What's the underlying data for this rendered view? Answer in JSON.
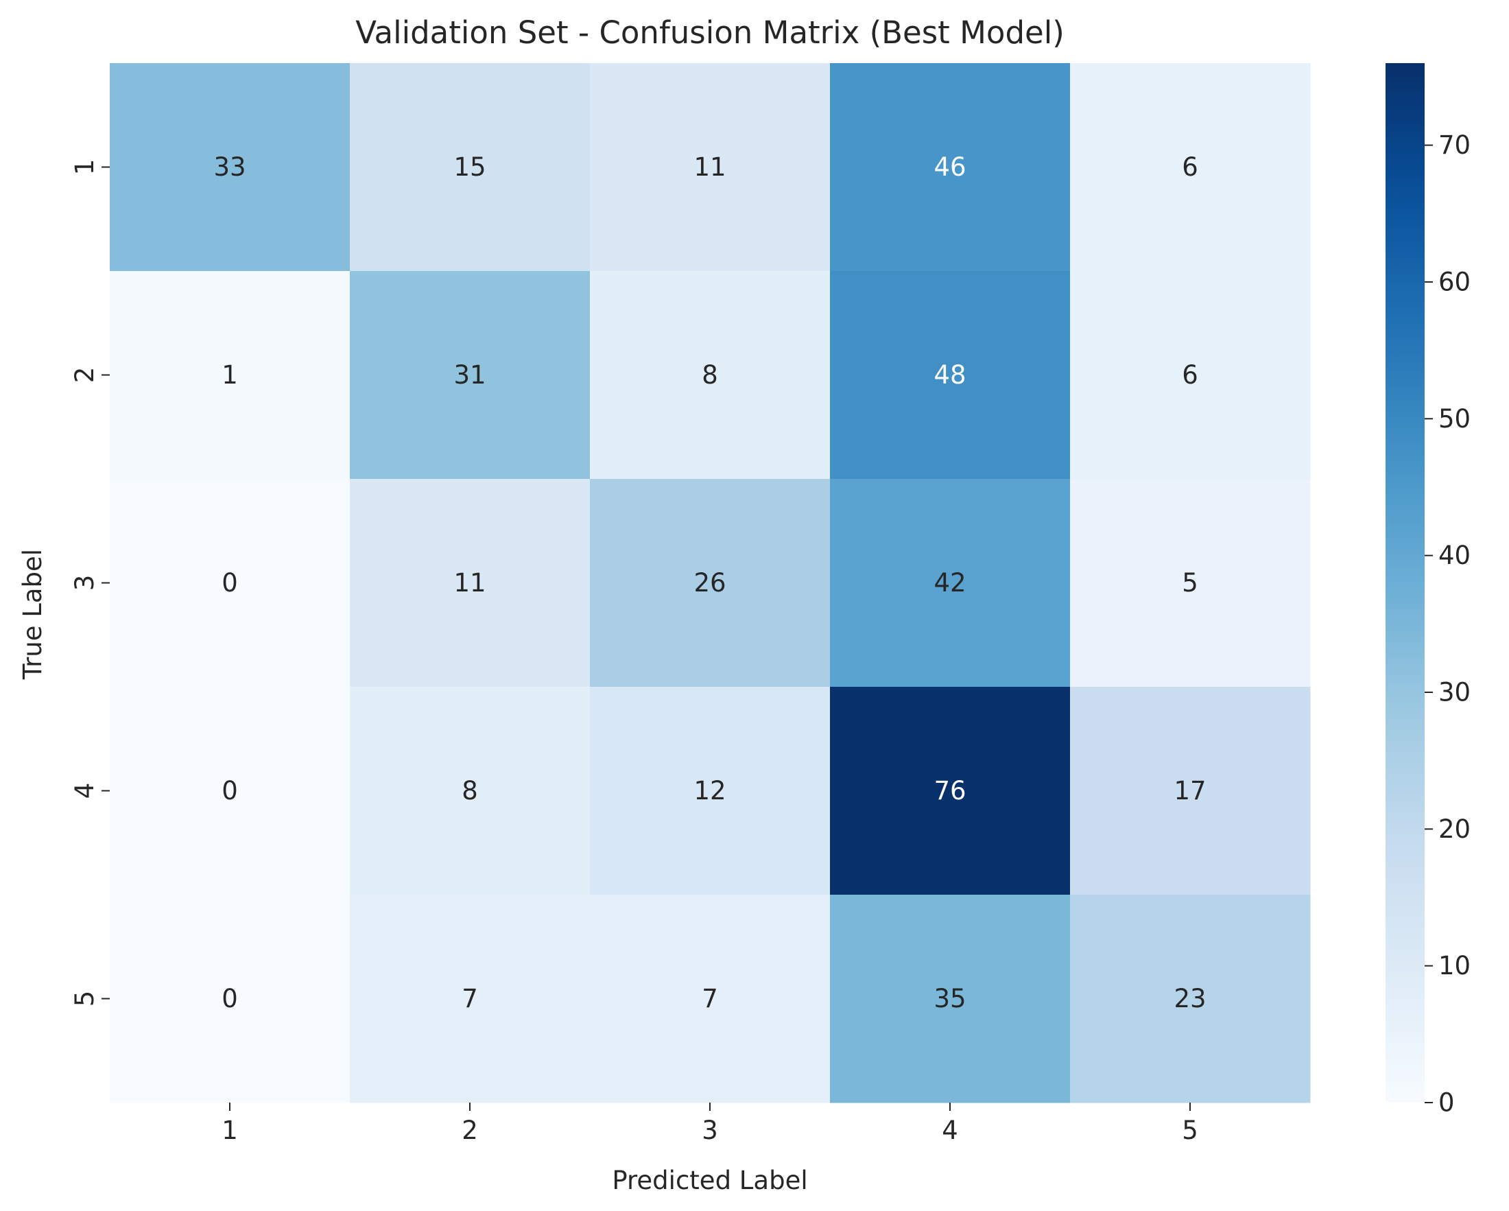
{
  "chart_data": {
    "type": "heatmap",
    "title": "Validation Set - Confusion Matrix (Best Model)",
    "xlabel": "Predicted Label",
    "ylabel": "True Label",
    "x_categories": [
      "1",
      "2",
      "3",
      "4",
      "5"
    ],
    "y_categories": [
      "1",
      "2",
      "3",
      "4",
      "5"
    ],
    "values": [
      [
        33,
        15,
        11,
        46,
        6
      ],
      [
        1,
        31,
        8,
        48,
        6
      ],
      [
        0,
        11,
        26,
        42,
        5
      ],
      [
        0,
        8,
        12,
        76,
        17
      ],
      [
        0,
        7,
        7,
        35,
        23
      ]
    ],
    "colormap": "Blues",
    "colorbar": {
      "min": 0,
      "max": 76,
      "ticks": [
        "0",
        "10",
        "20",
        "30",
        "40",
        "50",
        "60",
        "70"
      ]
    },
    "grid": false,
    "legend": "none"
  }
}
